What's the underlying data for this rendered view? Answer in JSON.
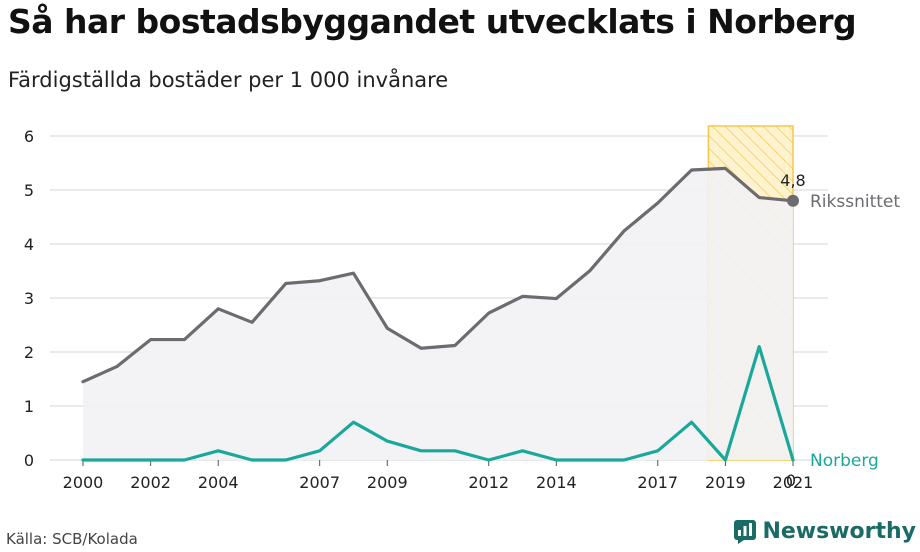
{
  "title": "Så har bostadsbyggandet utvecklats i Norberg",
  "subtitle": "Färdigställda bostäder per 1 000 invånare",
  "source": "Källa: SCB/Kolada",
  "brand": "Newsworthy",
  "colors": {
    "riksgenomsnitt": "#6b6b70",
    "norberg": "#1aa89a",
    "highlight_fill": "#fff3cf",
    "highlight_stroke": "#f2c94c",
    "grid": "#d6d6d6",
    "brand": "#1a6b66"
  },
  "chart_data": {
    "type": "line",
    "x": [
      2000,
      2001,
      2002,
      2003,
      2004,
      2005,
      2006,
      2007,
      2008,
      2009,
      2010,
      2011,
      2012,
      2013,
      2014,
      2015,
      2016,
      2017,
      2018,
      2019,
      2020,
      2021
    ],
    "series": [
      {
        "name": "Rikssnittet",
        "values": [
          1.45,
          1.73,
          2.23,
          2.23,
          2.8,
          2.55,
          3.27,
          3.32,
          3.46,
          2.44,
          2.07,
          2.12,
          2.72,
          3.03,
          2.99,
          3.51,
          4.24,
          4.76,
          5.37,
          5.4,
          4.86,
          4.8
        ],
        "end_label": "4,8"
      },
      {
        "name": "Norberg",
        "values": [
          0,
          0,
          0,
          0,
          0.17,
          0,
          0,
          0.17,
          0.7,
          0.35,
          0.17,
          0.17,
          0,
          0.17,
          0,
          0,
          0,
          0.17,
          0.7,
          0,
          2.1,
          0
        ],
        "end_label": "0"
      }
    ],
    "x_tick_labels": [
      "2000",
      "2002",
      "2004",
      "2007",
      "2009",
      "2012",
      "2014",
      "2017",
      "2019",
      "2021"
    ],
    "y_ticks": [
      0,
      1,
      2,
      3,
      4,
      5,
      6
    ],
    "ylim": [
      0,
      6
    ],
    "highlight_range": [
      2019,
      2021
    ],
    "grid": true,
    "xlabel": "",
    "ylabel": ""
  }
}
